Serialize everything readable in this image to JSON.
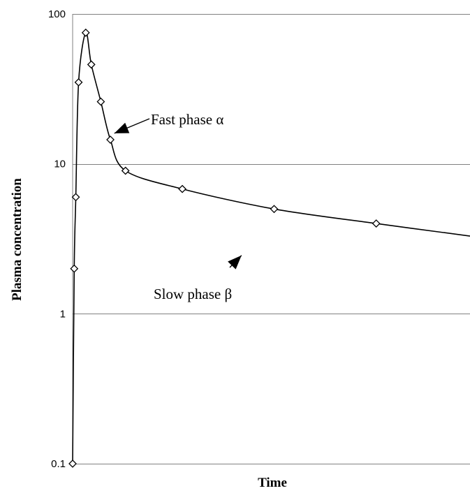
{
  "chart_data": {
    "type": "line",
    "xlabel": "Time",
    "ylabel": "Plasma concentration",
    "y_scale": "log",
    "ylim": [
      0.1,
      100
    ],
    "y_ticks": [
      0.1,
      1,
      10,
      100
    ],
    "y_tick_labels": [
      "0.1",
      "1",
      "10",
      "100"
    ],
    "xlim": [
      0,
      100
    ],
    "x_ticks_shown": false,
    "grid": "horizontal",
    "legend": "none",
    "series": [
      {
        "x": [
          0,
          0.4,
          0.8,
          1.5,
          3.3,
          4.7,
          7.1,
          9.5,
          13.3,
          27.6,
          50.7,
          76.4
        ],
        "y": [
          0.1,
          2,
          6,
          35,
          75,
          46,
          26,
          14.5,
          9,
          6.8,
          5,
          4
        ],
        "curve_end": {
          "x": 100,
          "y": 3.3
        },
        "marker": "diamond"
      }
    ],
    "annotations": [
      {
        "text": "Fast phase α",
        "points_to": {
          "x": 10.5,
          "y": 16
        }
      },
      {
        "text": "Slow  phase β",
        "points_to": {
          "x": 42.5,
          "y": 2.45
        }
      }
    ]
  }
}
